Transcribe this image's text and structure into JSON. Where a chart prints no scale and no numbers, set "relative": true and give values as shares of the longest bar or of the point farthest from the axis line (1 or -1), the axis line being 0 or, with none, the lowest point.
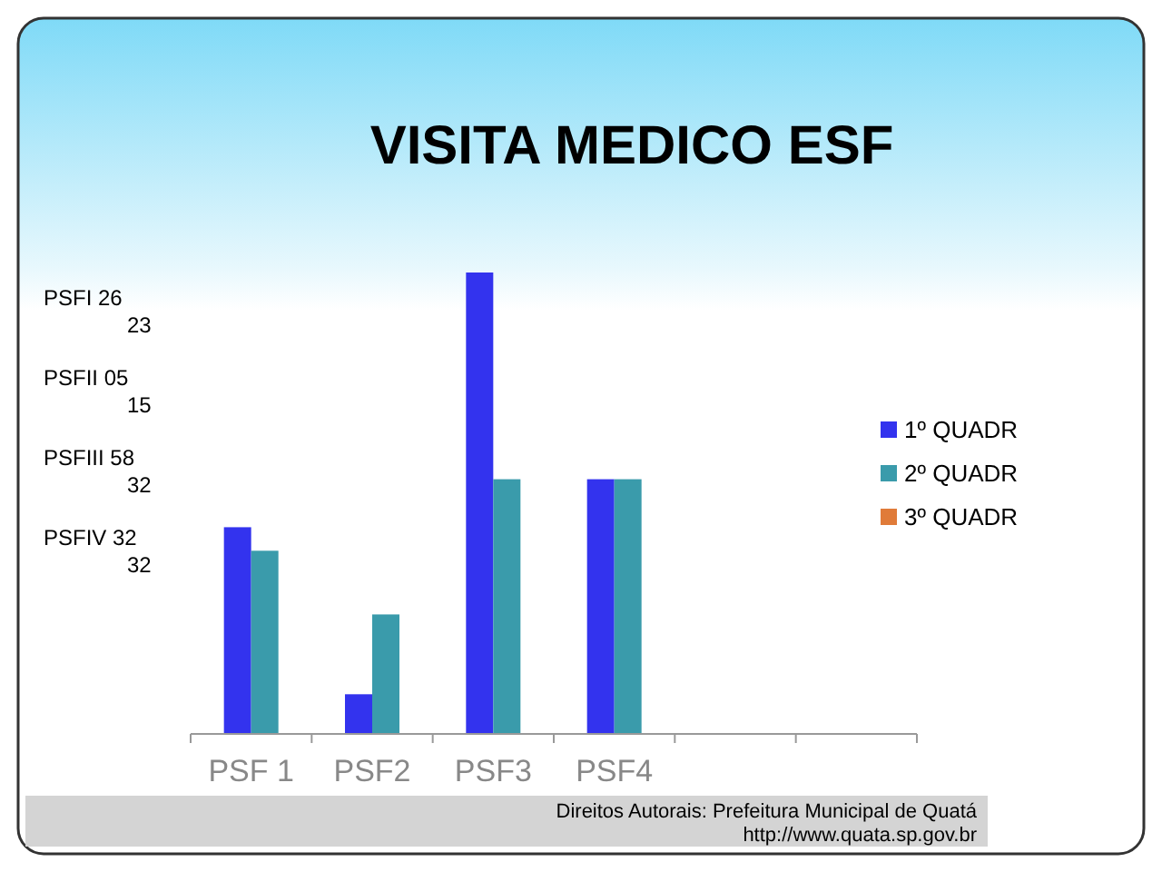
{
  "chart_data": {
    "type": "bar",
    "title": "VISITA MEDICO ESF",
    "categories": [
      "PSF 1",
      "PSF2",
      "PSF3",
      "PSF4",
      null,
      null
    ],
    "series": [
      {
        "name": "1º QUADR",
        "color": "#3333ee",
        "values": [
          0.448,
          0.086,
          1,
          0.552,
          null,
          null
        ]
      },
      {
        "name": "2º QUADR",
        "color": "#3a9bab",
        "values": [
          0.397,
          0.259,
          0.552,
          0.552,
          null,
          null
        ]
      },
      {
        "name": "3º QUADR",
        "color": "#e07b39",
        "values": [
          null,
          null,
          null,
          null,
          null,
          null
        ]
      }
    ],
    "legend": "right",
    "relative": true,
    "annotations": [
      "PSFI 26\n23",
      "PSFII 05\n15",
      "PSFIII 58\n32",
      "PSFIV 32\n32",
      "Direitos Autorais: Prefeitura Municipal de Quatá\nhttp://www.quata.sp.gov.br"
    ]
  }
}
